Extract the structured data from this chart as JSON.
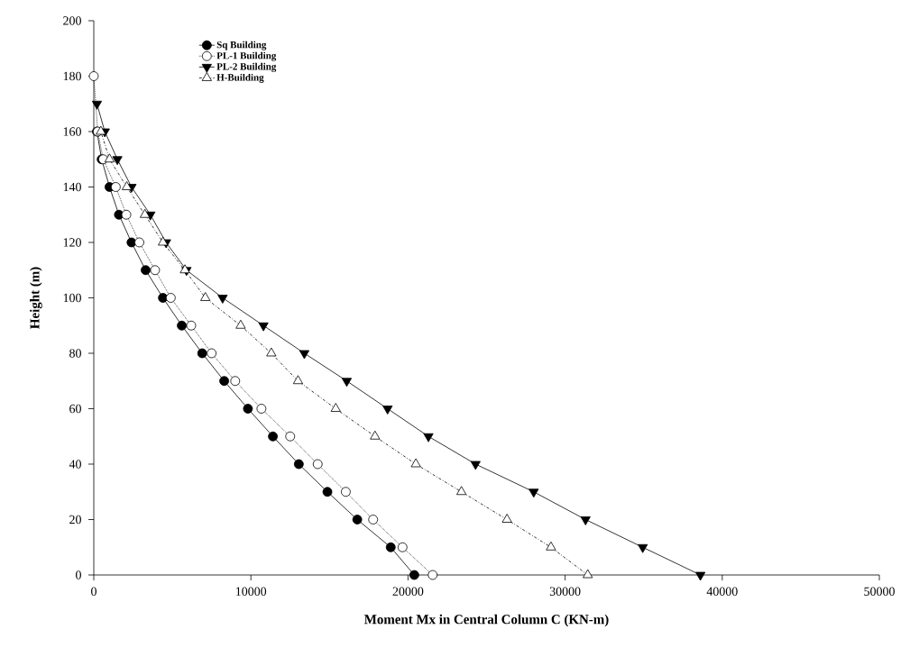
{
  "chart_data": {
    "type": "line",
    "xlabel": "Moment Mx in Central Column C (KN-m)",
    "ylabel": "Height (m)",
    "xlim": [
      0,
      50000
    ],
    "xticks": [
      0,
      10000,
      20000,
      30000,
      40000,
      50000
    ],
    "ylim": [
      0,
      200
    ],
    "yticks": [
      0,
      20,
      40,
      60,
      80,
      100,
      120,
      140,
      160,
      180,
      200
    ],
    "grid": false,
    "legend": "top left",
    "series": [
      {
        "name": "Sq Building",
        "color": "#000000",
        "marker": "circle",
        "line_style": "solid",
        "x": [
          20400,
          18900,
          16770,
          14870,
          13050,
          11400,
          9810,
          8300,
          6900,
          5600,
          4400,
          3300,
          2400,
          1600,
          1000,
          500,
          200,
          null,
          null
        ],
        "values": [
          0,
          10,
          20,
          30,
          40,
          50,
          60,
          70,
          80,
          90,
          100,
          110,
          120,
          130,
          140,
          150,
          160,
          null,
          null
        ]
      },
      {
        "name": "PL-1 Building",
        "color": "#000000",
        "marker": "circle",
        "line_style": "dotted",
        "x": [
          21570,
          19650,
          17780,
          16040,
          14250,
          12500,
          10670,
          9000,
          7500,
          6200,
          4900,
          3900,
          2900,
          2070,
          1400,
          600,
          250,
          null,
          0
        ],
        "values": [
          0,
          10,
          20,
          30,
          40,
          50,
          60,
          70,
          80,
          90,
          100,
          110,
          120,
          130,
          140,
          150,
          160,
          null,
          180
        ]
      },
      {
        "name": "PL-2 Building",
        "color": "#000000",
        "marker": "triangle",
        "line_style": "solid",
        "x": [
          38610,
          34940,
          31300,
          28000,
          24300,
          21300,
          18700,
          16100,
          13400,
          10800,
          8200,
          5900,
          4600,
          3600,
          2400,
          1500,
          700,
          200,
          null
        ],
        "values": [
          0,
          10,
          20,
          30,
          40,
          50,
          60,
          70,
          80,
          90,
          100,
          110,
          120,
          130,
          140,
          150,
          160,
          170,
          null
        ]
      },
      {
        "name": "H-Building",
        "color": "#000000",
        "marker": "triangle",
        "line_style": "dashed",
        "x": [
          31440,
          29100,
          26300,
          23400,
          20500,
          17900,
          15400,
          13000,
          11300,
          9350,
          7100,
          5800,
          4400,
          3250,
          2100,
          1000,
          450,
          null,
          null
        ],
        "values": [
          0,
          10,
          20,
          30,
          40,
          50,
          60,
          70,
          80,
          90,
          100,
          110,
          120,
          130,
          140,
          150,
          160,
          null,
          null
        ]
      }
    ]
  }
}
